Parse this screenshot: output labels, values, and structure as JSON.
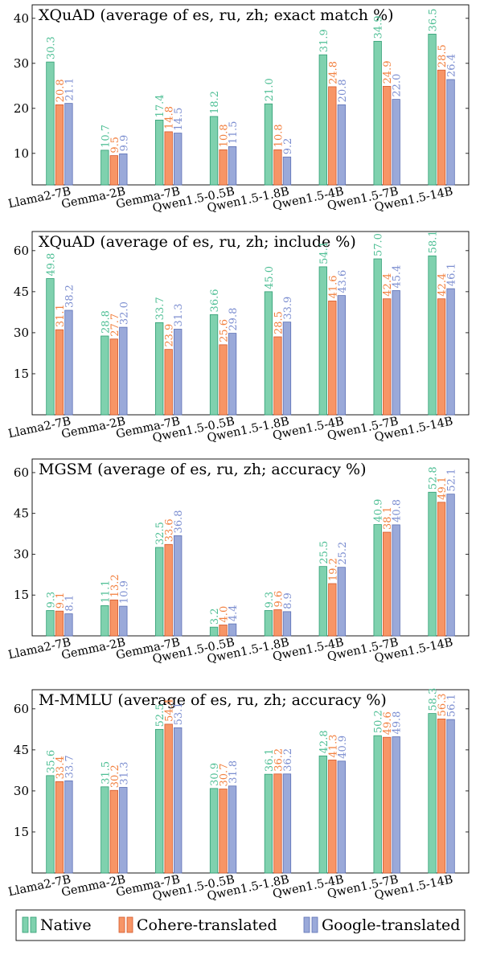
{
  "colors": {
    "Native": "#7fd1ae",
    "Cohere-translated": "#f79566",
    "Google-translated": "#9aa9d9",
    "native_fill": "#7fd1ae",
    "cohere_fill": "#f79566",
    "google_fill": "#9aa9d9"
  },
  "legend": {
    "items": [
      "Native",
      "Cohere-translated",
      "Google-translated"
    ]
  },
  "chart_data": [
    {
      "type": "bar",
      "title": "XQuAD (average of es, ru, zh; exact match %)",
      "categories": [
        "Llama2-7B",
        "Gemma-2B",
        "Gemma-7B",
        "Qwen1.5-0.5B",
        "Qwen1.5-1.8B",
        "Qwen1.5-4B",
        "Qwen1.5-7B",
        "Qwen1.5-14B"
      ],
      "yticks": [
        10,
        20,
        30,
        40
      ],
      "ylim": [
        3,
        43
      ],
      "grid": false,
      "series": [
        {
          "name": "Native",
          "values": [
            30.3,
            10.7,
            17.4,
            18.2,
            21.0,
            31.9,
            34.9,
            36.5
          ],
          "labels": [
            "30.3",
            "10.7",
            "17.4",
            "18.2",
            "21.0",
            "31.9",
            "34.9",
            "36.5"
          ]
        },
        {
          "name": "Cohere-translated",
          "values": [
            20.8,
            9.5,
            14.8,
            10.8,
            10.8,
            24.8,
            24.9,
            28.5
          ],
          "labels": [
            "20.8",
            "9.5",
            "14.8",
            "10.8",
            "10.8",
            "24.8",
            "24.9",
            "28.5"
          ]
        },
        {
          "name": "Google-translated",
          "values": [
            21.1,
            9.9,
            14.5,
            11.5,
            9.2,
            20.8,
            22.0,
            26.4
          ],
          "labels": [
            "21.1",
            "9.9",
            "14.5",
            "11.5",
            "9.2",
            "20.8",
            "22.0",
            "26.4"
          ]
        }
      ]
    },
    {
      "type": "bar",
      "title": "XQuAD (average of es, ru, zh; include %)",
      "categories": [
        "Llama2-7B",
        "Gemma-2B",
        "Gemma-7B",
        "Qwen1.5-0.5B",
        "Qwen1.5-1.8B",
        "Qwen1.5-4B",
        "Qwen1.5-7B",
        "Qwen1.5-14B"
      ],
      "yticks": [
        15,
        30,
        45,
        60
      ],
      "ylim": [
        0,
        67
      ],
      "grid": false,
      "series": [
        {
          "name": "Native",
          "values": [
            49.8,
            28.8,
            33.7,
            36.6,
            45.0,
            54.1,
            57.0,
            58.1
          ],
          "labels": [
            "49.8",
            "28.8",
            "33.7",
            "36.6",
            "45.0",
            "54.1",
            "57.0",
            "58.1"
          ]
        },
        {
          "name": "Cohere-translated",
          "values": [
            31.1,
            27.7,
            23.9,
            25.6,
            28.5,
            41.6,
            42.4,
            42.4
          ],
          "labels": [
            "31.1",
            "27.7",
            "23.9",
            "25.6",
            "28.5",
            "41.6",
            "42.4",
            "42.4"
          ]
        },
        {
          "name": "Google-translated",
          "values": [
            38.2,
            32.0,
            31.3,
            29.8,
            33.9,
            43.6,
            45.4,
            46.1
          ],
          "labels": [
            "38.2",
            "32.0",
            "31.3",
            "29.8",
            "33.9",
            "43.6",
            "45.4",
            "46.1"
          ]
        }
      ]
    },
    {
      "type": "bar",
      "title": "MGSM (average of es, ru, zh; accuracy %)",
      "categories": [
        "Llama2-7B",
        "Gemma-2B",
        "Gemma-7B",
        "Qwen1.5-0.5B",
        "Qwen1.5-1.8B",
        "Qwen1.5-4B",
        "Qwen1.5-7B",
        "Qwen1.5-14B"
      ],
      "yticks": [
        15,
        30,
        45,
        60
      ],
      "ylim": [
        0,
        65
      ],
      "grid": false,
      "series": [
        {
          "name": "Native",
          "values": [
            9.3,
            11.1,
            32.5,
            3.2,
            9.3,
            25.5,
            40.9,
            52.8
          ],
          "labels": [
            "9.3",
            "11.1",
            "32.5",
            "3.2",
            "9.3",
            "25.5",
            "40.9",
            "52.8"
          ]
        },
        {
          "name": "Cohere-translated",
          "values": [
            9.1,
            13.2,
            33.6,
            4.0,
            9.6,
            19.2,
            38.1,
            49.1
          ],
          "labels": [
            "9.1",
            "13.2",
            "33.6",
            "4.0",
            "9.6",
            "19.2",
            "38.1",
            "49.1"
          ]
        },
        {
          "name": "Google-translated",
          "values": [
            8.1,
            10.9,
            36.8,
            4.4,
            8.9,
            25.2,
            40.8,
            52.1
          ],
          "labels": [
            "8.1",
            "10.9",
            "36.8",
            "4.4",
            "8.9",
            "25.2",
            "40.8",
            "52.1"
          ]
        }
      ]
    },
    {
      "type": "bar",
      "title": "M-MMLU (average of es, ru, zh; accuracy %)",
      "categories": [
        "Llama2-7B",
        "Gemma-2B",
        "Gemma-7B",
        "Qwen1.5-0.5B",
        "Qwen1.5-1.8B",
        "Qwen1.5-4B",
        "Qwen1.5-7B",
        "Qwen1.5-14B"
      ],
      "yticks": [
        15,
        30,
        45,
        60
      ],
      "ylim": [
        0,
        67
      ],
      "grid": false,
      "series": [
        {
          "name": "Native",
          "values": [
            35.6,
            31.5,
            52.5,
            30.9,
            36.1,
            42.8,
            50.2,
            58.3
          ],
          "labels": [
            "35.6",
            "31.5",
            "52.5",
            "30.9",
            "36.1",
            "42.8",
            "50.2",
            "58.3"
          ]
        },
        {
          "name": "Cohere-translated",
          "values": [
            33.4,
            30.2,
            54.4,
            30.7,
            36.2,
            41.3,
            49.6,
            56.3
          ],
          "labels": [
            "33.4",
            "30.2",
            "54.4",
            "30.7",
            "36.2",
            "41.3",
            "49.6",
            "56.3"
          ]
        },
        {
          "name": "Google-translated",
          "values": [
            33.7,
            31.3,
            53.1,
            31.8,
            36.2,
            40.9,
            49.8,
            56.1
          ],
          "labels": [
            "33.7",
            "31.3",
            "53.1",
            "31.8",
            "36.2",
            "40.9",
            "49.8",
            "56.1"
          ]
        }
      ]
    }
  ]
}
